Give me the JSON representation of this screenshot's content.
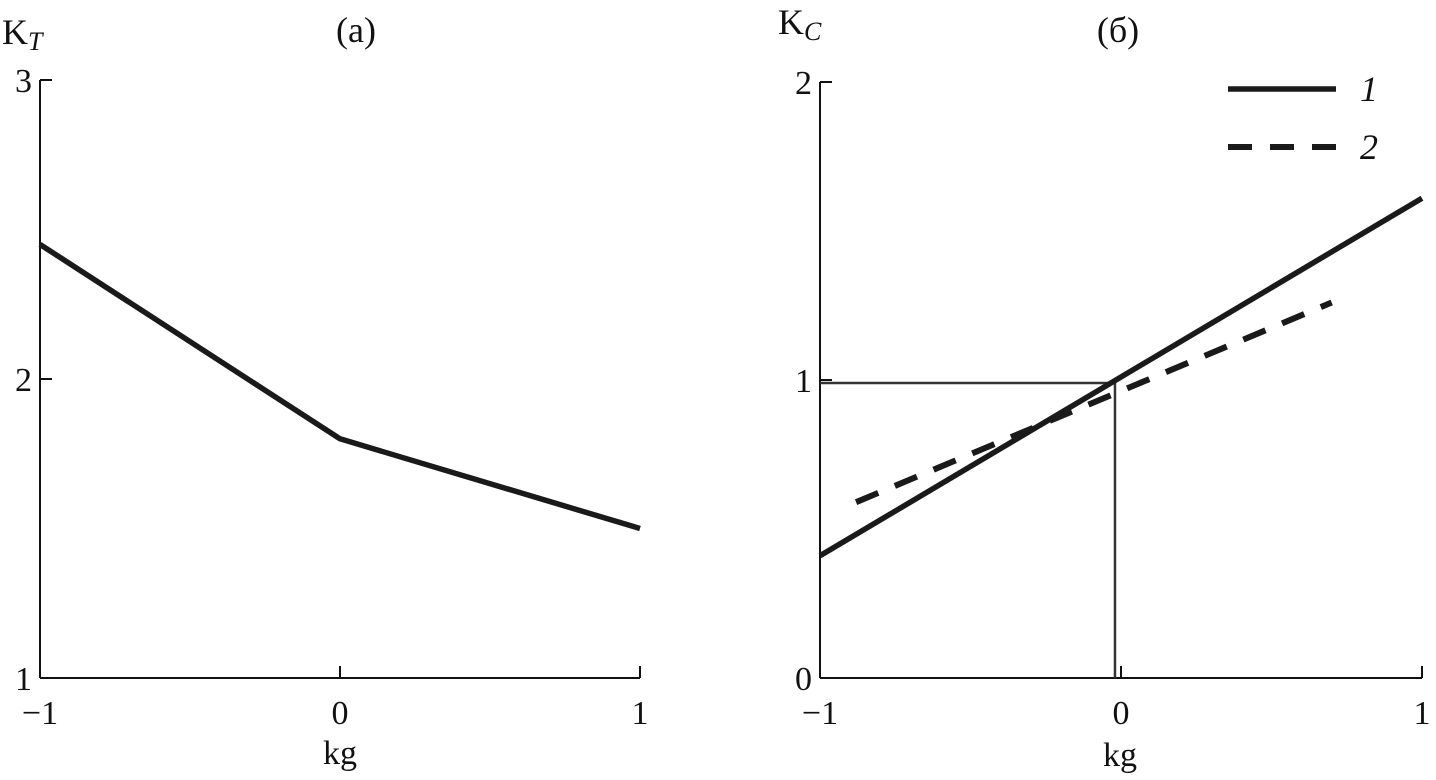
{
  "chart_data": [
    {
      "type": "line",
      "title": "(a)",
      "xlabel": "kg",
      "ylabel": "K",
      "ylabel_sub": "T",
      "xlim": [
        -1,
        1
      ],
      "ylim": [
        1,
        3
      ],
      "xticks": [
        -1,
        0,
        1
      ],
      "xtick_labels": [
        "−1",
        "0",
        "1"
      ],
      "yticks": [
        1,
        2,
        3
      ],
      "ytick_labels": [
        "1",
        "2",
        "3"
      ],
      "grid": false,
      "series": [
        {
          "x": [
            -1,
            0,
            1
          ],
          "y": [
            2.45,
            1.8,
            1.5
          ],
          "style": "solid"
        }
      ]
    },
    {
      "type": "line",
      "title": "(б)",
      "xlabel": "kg",
      "ylabel": "K",
      "ylabel_sub": "C",
      "xlim": [
        -1,
        1
      ],
      "ylim": [
        0,
        2
      ],
      "xticks": [
        -1,
        0,
        1
      ],
      "xtick_labels": [
        "−1",
        "0",
        "1"
      ],
      "yticks": [
        0,
        1,
        2
      ],
      "ytick_labels": [
        "0",
        "1",
        "2"
      ],
      "grid": false,
      "legend_position": "top-right",
      "reference_point": {
        "x": -0.02,
        "y": 0.99
      },
      "series": [
        {
          "name": "1",
          "x": [
            -1,
            1
          ],
          "y": [
            0.41,
            1.61
          ],
          "style": "solid"
        },
        {
          "name": "2",
          "x": [
            -0.88,
            0.7
          ],
          "y": [
            0.59,
            1.26
          ],
          "style": "dashed"
        }
      ]
    }
  ]
}
